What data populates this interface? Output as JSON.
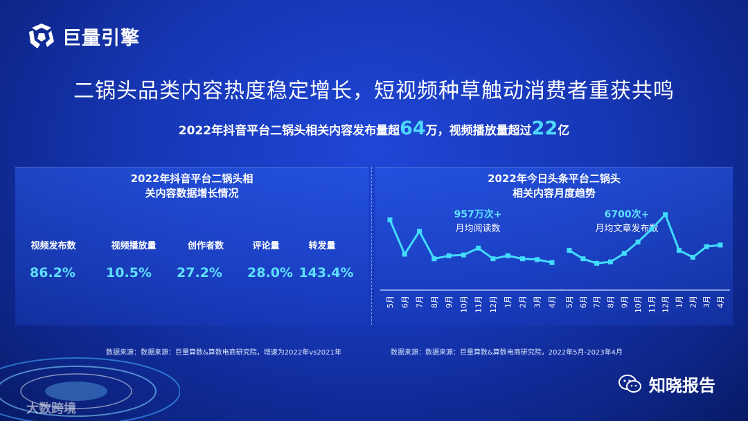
{
  "brand": {
    "name": "巨量引擎"
  },
  "headline": "二锅头品类内容热度稳定增长，短视频种草触动消费者重获共鸣",
  "subline": {
    "prefix": "2022年抖音平台二锅头相关内容发布量超",
    "num1": "64",
    "mid": "万，视频播放量超过",
    "num2": "22",
    "suffix": "亿"
  },
  "left_panel": {
    "title_line1": "2022年抖音平台二锅头相",
    "title_line2": "关内容数据增长情况",
    "metrics": [
      {
        "label": "视频发布数",
        "value": "86.2%"
      },
      {
        "label": "视频播放量",
        "value": "10.5%"
      },
      {
        "label": "创作者数",
        "value": "27.2%"
      },
      {
        "label": "评论量",
        "value": "28.0%"
      },
      {
        "label": "转发量",
        "value": "143.4%"
      }
    ],
    "source": "数据来源：数据来源：巨量算数&算数电商研究院，增速为2022年vs2021年"
  },
  "right_panel": {
    "title_line1": "2022年今日头条平台二锅头",
    "title_line2": "相关内容月度趋势",
    "source": "数据来源：数据来源：巨量算数&算数电商研究院，2022年5月-2023年4月"
  },
  "chart_data": [
    {
      "type": "line",
      "x": [
        "5月",
        "6月",
        "7月",
        "8月",
        "9月",
        "10月",
        "11月",
        "12月",
        "1月",
        "2月",
        "3月",
        "4月"
      ],
      "values": [
        84,
        39,
        69,
        33,
        37,
        38,
        47,
        33,
        37,
        33,
        32,
        28
      ],
      "ylim": [
        0,
        100
      ],
      "annotation": {
        "value": "957万次+",
        "label": "月均阅读数"
      },
      "color": "#42dcff"
    },
    {
      "type": "line",
      "x": [
        "5月",
        "6月",
        "7月",
        "8月",
        "9月",
        "10月",
        "11月",
        "12月",
        "1月",
        "2月",
        "3月",
        "4月"
      ],
      "values": [
        44,
        33,
        27,
        29,
        40,
        55,
        72,
        91,
        44,
        35,
        49,
        51
      ],
      "ylim": [
        0,
        100
      ],
      "annotation": {
        "value": "6700次+",
        "label": "月均文章发布数"
      },
      "color": "#42dcff"
    }
  ],
  "watermark": "大数跨境",
  "wechat": {
    "account": "知晓报告"
  }
}
